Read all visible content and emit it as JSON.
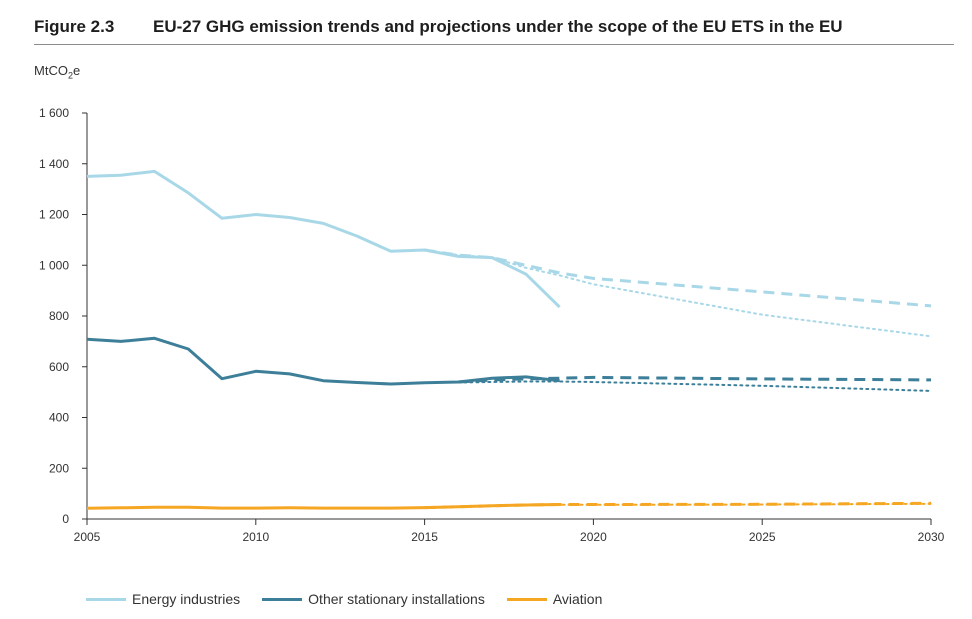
{
  "figure": {
    "label": "Figure 2.3",
    "title": "EU-27 GHG emission trends and projections under the scope of the EU ETS in the EU"
  },
  "chart_data": {
    "type": "line",
    "title": "EU-27 GHG emission trends and projections under the scope of the EU ETS in the EU",
    "ylabel_prefix": "MtCO",
    "ylabel_sub": "2",
    "ylabel_suffix": "e",
    "xlim": [
      2005,
      2030
    ],
    "ylim": [
      0,
      1600
    ],
    "x_ticks": [
      2005,
      2010,
      2015,
      2020,
      2025,
      2030
    ],
    "y_ticks": [
      0,
      200,
      400,
      600,
      800,
      1000,
      1200,
      1400,
      1600
    ],
    "y_tick_labels": [
      "0",
      "200",
      "400",
      "600",
      "800",
      "1 000",
      "1 200",
      "1 400",
      "1 600"
    ],
    "grid": false,
    "legend_position": "bottom",
    "series": [
      {
        "name": "Energy industries",
        "color": "#a8d8e8",
        "historical": {
          "x": [
            2005,
            2006,
            2007,
            2008,
            2009,
            2010,
            2011,
            2012,
            2013,
            2014,
            2015,
            2016,
            2017,
            2018,
            2019
          ],
          "y": [
            1350,
            1355,
            1370,
            1285,
            1185,
            1200,
            1188,
            1165,
            1115,
            1055,
            1060,
            1035,
            1030,
            965,
            835
          ]
        },
        "projection_dashed": {
          "x": [
            2015,
            2016,
            2017,
            2018,
            2019,
            2020,
            2025,
            2030
          ],
          "y": [
            1060,
            1040,
            1030,
            1000,
            970,
            948,
            895,
            840
          ]
        },
        "projection_dotted": {
          "x": [
            2015,
            2016,
            2017,
            2018,
            2019,
            2020,
            2025,
            2030
          ],
          "y": [
            1060,
            1040,
            1030,
            990,
            960,
            925,
            805,
            720
          ]
        }
      },
      {
        "name": "Other stationary installations",
        "color": "#3d7f99",
        "historical": {
          "x": [
            2005,
            2006,
            2007,
            2008,
            2009,
            2010,
            2011,
            2012,
            2013,
            2014,
            2015,
            2016,
            2017,
            2018,
            2019
          ],
          "y": [
            708,
            700,
            712,
            670,
            553,
            582,
            572,
            545,
            538,
            532,
            537,
            540,
            555,
            560,
            545
          ]
        },
        "projection_dashed": {
          "x": [
            2016,
            2017,
            2018,
            2019,
            2020,
            2025,
            2030
          ],
          "y": [
            540,
            548,
            552,
            555,
            558,
            552,
            548
          ]
        },
        "projection_dotted": {
          "x": [
            2016,
            2017,
            2018,
            2019,
            2020,
            2025,
            2030
          ],
          "y": [
            538,
            540,
            542,
            542,
            540,
            525,
            505
          ]
        }
      },
      {
        "name": "Aviation",
        "color": "#f5a623",
        "historical": {
          "x": [
            2005,
            2006,
            2007,
            2008,
            2009,
            2010,
            2011,
            2012,
            2013,
            2014,
            2015,
            2016,
            2017,
            2018,
            2019
          ],
          "y": [
            42,
            44,
            46,
            46,
            43,
            43,
            44,
            43,
            43,
            43,
            45,
            48,
            52,
            55,
            57
          ]
        },
        "projection_dashed": {
          "x": [
            2015,
            2016,
            2017,
            2018,
            2019,
            2020,
            2025,
            2030
          ],
          "y": [
            45,
            48,
            52,
            55,
            57,
            57,
            58,
            62
          ]
        },
        "projection_dotted": {
          "x": [
            2015,
            2016,
            2017,
            2018,
            2019,
            2020,
            2025,
            2030
          ],
          "y": [
            45,
            48,
            52,
            55,
            56,
            56,
            57,
            60
          ]
        }
      }
    ]
  }
}
